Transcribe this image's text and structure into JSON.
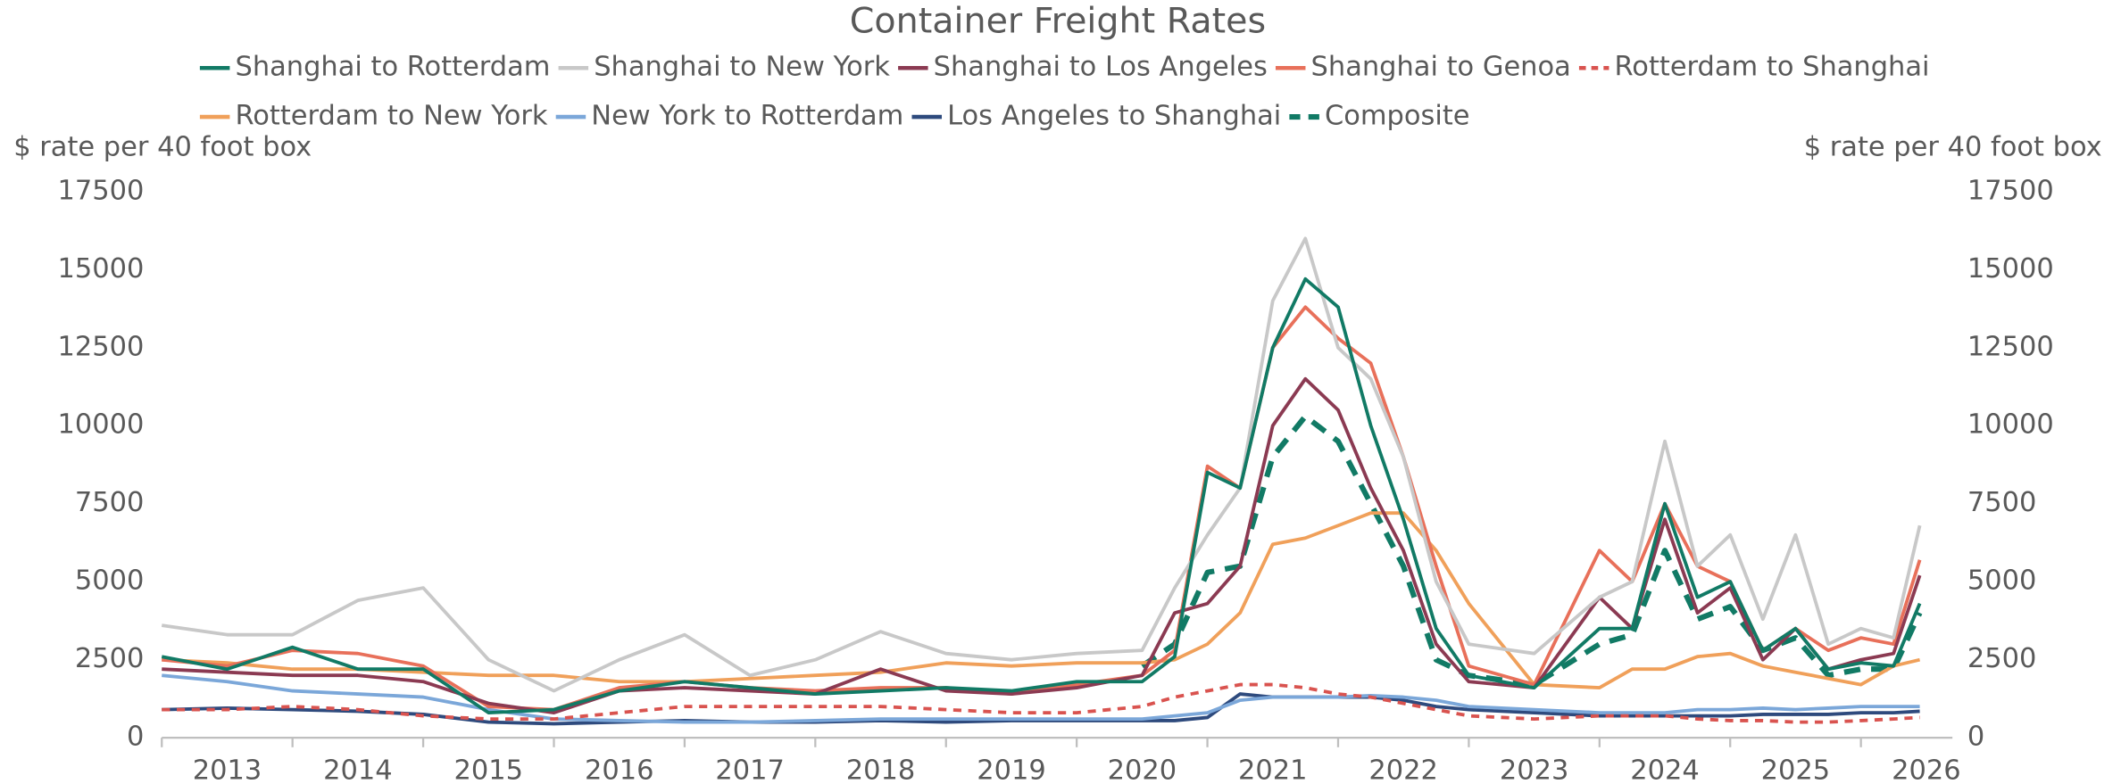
{
  "chart_data": {
    "type": "line",
    "title": "Container Freight Rates",
    "y_label": "$ rate per 40 foot box",
    "y2_label": "$ rate per 40 foot box",
    "x": [
      2013.0,
      2013.5,
      2014.0,
      2014.5,
      2015.0,
      2015.5,
      2016.0,
      2016.5,
      2017.0,
      2017.5,
      2018.0,
      2018.5,
      2019.0,
      2019.5,
      2020.0,
      2020.5,
      2020.75,
      2021.0,
      2021.25,
      2021.5,
      2021.75,
      2022.0,
      2022.25,
      2022.5,
      2022.75,
      2023.0,
      2023.5,
      2024.0,
      2024.25,
      2024.5,
      2024.75,
      2025.0,
      2025.25,
      2025.5,
      2025.75,
      2026.0,
      2026.25,
      2026.45
    ],
    "xlim": [
      2013,
      2026.7
    ],
    "xticks": [
      2013,
      2014,
      2015,
      2016,
      2017,
      2018,
      2019,
      2020,
      2021,
      2022,
      2023,
      2024,
      2025,
      2026
    ],
    "ylim": [
      0,
      17500
    ],
    "yticks": [
      0,
      2500,
      5000,
      7500,
      10000,
      12500,
      15000,
      17500
    ],
    "y2lim": [
      0,
      17500
    ],
    "y2ticks": [
      0,
      2500,
      5000,
      7500,
      10000,
      12500,
      15000,
      17500
    ],
    "legend": "top",
    "series": [
      {
        "name": "Shanghai to Rotterdam",
        "color": "#117a65",
        "dashed": false,
        "values": [
          2600,
          2200,
          2900,
          2200,
          2200,
          800,
          900,
          1500,
          1800,
          1600,
          1400,
          1500,
          1600,
          1500,
          1800,
          1800,
          2600,
          8500,
          8000,
          12500,
          14700,
          13800,
          10000,
          7000,
          3500,
          2000,
          1600,
          3500,
          3500,
          7500,
          4500,
          5000,
          2800,
          3500,
          2200,
          2400,
          2300,
          4300
        ]
      },
      {
        "name": "Shanghai to New York",
        "color": "#c8c8c8",
        "dashed": false,
        "values": [
          3600,
          3300,
          3300,
          4400,
          4800,
          2500,
          1500,
          2500,
          3300,
          2000,
          2500,
          3400,
          2700,
          2500,
          2700,
          2800,
          4800,
          6500,
          8000,
          14000,
          16000,
          12500,
          11500,
          9000,
          5000,
          3000,
          2700,
          4500,
          5000,
          9500,
          5500,
          6500,
          3800,
          6500,
          3000,
          3500,
          3200,
          6800
        ]
      },
      {
        "name": "Shanghai to Los Angeles",
        "color": "#8b3a52",
        "dashed": false,
        "values": [
          2200,
          2100,
          2000,
          2000,
          1800,
          1100,
          800,
          1500,
          1600,
          1500,
          1400,
          2200,
          1500,
          1400,
          1600,
          2000,
          4000,
          4300,
          5500,
          10000,
          11500,
          10500,
          8000,
          6000,
          3000,
          1800,
          1600,
          4500,
          3500,
          7000,
          4000,
          4800,
          2500,
          3500,
          2200,
          2500,
          2700,
          5200
        ]
      },
      {
        "name": "Shanghai to Genoa",
        "color": "#e8705a",
        "dashed": false,
        "values": [
          2500,
          2300,
          2800,
          2700,
          2300,
          1000,
          900,
          1600,
          1800,
          1600,
          1500,
          1600,
          1600,
          1400,
          1700,
          2000,
          2800,
          8700,
          8000,
          12500,
          13800,
          12800,
          12000,
          9000,
          5500,
          2300,
          1700,
          6000,
          5000,
          7500,
          5500,
          5000,
          2800,
          3500,
          2800,
          3200,
          3000,
          5700
        ]
      },
      {
        "name": "Rotterdam to Shanghai",
        "color": "#d9534f",
        "dashed": true,
        "values": [
          900,
          900,
          1000,
          900,
          700,
          600,
          600,
          800,
          1000,
          1000,
          1000,
          1000,
          900,
          800,
          800,
          1000,
          1300,
          1500,
          1700,
          1700,
          1600,
          1400,
          1300,
          1100,
          900,
          700,
          600,
          700,
          700,
          700,
          600,
          550,
          550,
          500,
          500,
          550,
          600,
          650
        ]
      },
      {
        "name": "Rotterdam to New York",
        "color": "#f0a05a",
        "dashed": false,
        "values": [
          2500,
          2400,
          2200,
          2200,
          2100,
          2000,
          2000,
          1800,
          1800,
          1900,
          2000,
          2100,
          2400,
          2300,
          2400,
          2400,
          2500,
          3000,
          4000,
          6200,
          6400,
          6800,
          7200,
          7200,
          6000,
          4300,
          1700,
          1600,
          2200,
          2200,
          2600,
          2700,
          2300,
          2100,
          1900,
          1700,
          2300,
          2500
        ]
      },
      {
        "name": "New York to Rotterdam",
        "color": "#7ba7d9",
        "dashed": false,
        "values": [
          2000,
          1800,
          1500,
          1400,
          1300,
          900,
          600,
          550,
          500,
          500,
          550,
          600,
          600,
          600,
          600,
          600,
          700,
          800,
          1200,
          1300,
          1300,
          1300,
          1350,
          1300,
          1200,
          1000,
          900,
          800,
          800,
          800,
          900,
          900,
          950,
          900,
          950,
          1000,
          1000,
          1000
        ]
      },
      {
        "name": "Los Angeles to Shanghai",
        "color": "#2e4a7d",
        "dashed": false,
        "values": [
          900,
          950,
          900,
          850,
          750,
          500,
          450,
          500,
          550,
          500,
          500,
          550,
          500,
          550,
          550,
          550,
          550,
          650,
          1400,
          1300,
          1300,
          1300,
          1300,
          1200,
          1000,
          900,
          800,
          700,
          700,
          700,
          700,
          700,
          750,
          750,
          750,
          800,
          800,
          850
        ]
      },
      {
        "name": "Composite",
        "color": "#117a65",
        "dashed": true,
        "values": [
          null,
          null,
          null,
          null,
          null,
          null,
          null,
          null,
          null,
          null,
          null,
          null,
          null,
          null,
          null,
          2300,
          3000,
          5300,
          5500,
          9000,
          10300,
          9500,
          7500,
          5500,
          2500,
          2000,
          1700,
          3000,
          3300,
          6000,
          3800,
          4200,
          2800,
          3200,
          2000,
          2200,
          2200,
          4000
        ]
      }
    ]
  }
}
